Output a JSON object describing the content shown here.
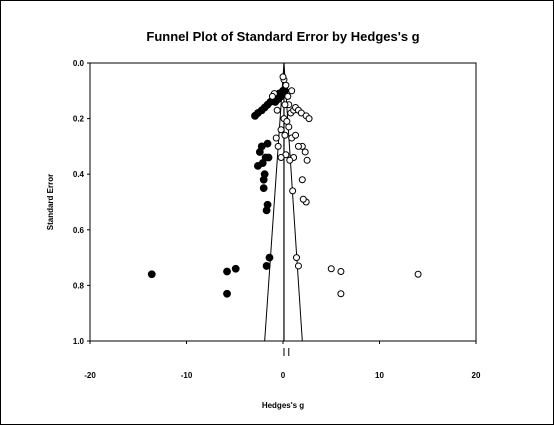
{
  "chart_data": {
    "type": "scatter",
    "title": "Funnel Plot of Standard Error by Hedges's g",
    "xlabel": "Hedges's g",
    "ylabel": "Standard Error",
    "xlim": [
      -20,
      20
    ],
    "ylim": [
      0.0,
      1.0
    ],
    "y_inverted": true,
    "x_ticks": [
      "-20",
      "-10",
      "0",
      "10",
      "20"
    ],
    "y_ticks": [
      "0.0",
      "0.2",
      "0.4",
      "0.6",
      "0.8",
      "1.0"
    ],
    "grid": false,
    "legend": "none",
    "funnel": {
      "center": 0.1,
      "apex_se": 0.0,
      "left_at_base": -1.9,
      "right_at_base": 2.0
    },
    "summary_markers": [
      0.1,
      0.6
    ],
    "series": [
      {
        "marker": "filled-circle",
        "points": [
          [
            -13.6,
            0.76
          ],
          [
            -5.8,
            0.75
          ],
          [
            -5.8,
            0.83
          ],
          [
            -4.9,
            0.74
          ],
          [
            -1.7,
            0.73
          ],
          [
            -1.4,
            0.7
          ],
          [
            -2.6,
            0.37
          ],
          [
            -2.4,
            0.32
          ],
          [
            -2.2,
            0.3
          ],
          [
            -2.1,
            0.36
          ],
          [
            -2.0,
            0.42
          ],
          [
            -2.0,
            0.45
          ],
          [
            -1.9,
            0.4
          ],
          [
            -1.8,
            0.34
          ],
          [
            -1.6,
            0.29
          ],
          [
            -1.5,
            0.34
          ],
          [
            -1.7,
            0.53
          ],
          [
            -1.6,
            0.51
          ],
          [
            -2.9,
            0.19
          ],
          [
            -2.6,
            0.18
          ],
          [
            -2.2,
            0.17
          ],
          [
            -1.9,
            0.16
          ],
          [
            -1.6,
            0.15
          ],
          [
            -1.3,
            0.14
          ],
          [
            -1.0,
            0.13
          ],
          [
            -0.7,
            0.12
          ],
          [
            -0.4,
            0.11
          ],
          [
            -0.1,
            0.11
          ],
          [
            0.2,
            0.1
          ],
          [
            -0.8,
            0.14
          ],
          [
            -0.5,
            0.13
          ],
          [
            -0.2,
            0.12
          ],
          [
            0.0,
            0.1
          ]
        ]
      },
      {
        "marker": "open-circle",
        "points": [
          [
            14.0,
            0.76
          ],
          [
            6.0,
            0.75
          ],
          [
            6.0,
            0.83
          ],
          [
            5.0,
            0.74
          ],
          [
            1.6,
            0.73
          ],
          [
            1.4,
            0.7
          ],
          [
            2.4,
            0.5
          ],
          [
            2.1,
            0.49
          ],
          [
            1.0,
            0.46
          ],
          [
            2.0,
            0.42
          ],
          [
            2.5,
            0.35
          ],
          [
            2.3,
            0.32
          ],
          [
            2.0,
            0.3
          ],
          [
            1.6,
            0.3
          ],
          [
            1.1,
            0.34
          ],
          [
            0.7,
            0.35
          ],
          [
            0.3,
            0.33
          ],
          [
            -0.2,
            0.34
          ],
          [
            -0.5,
            0.3
          ],
          [
            -0.7,
            0.27
          ],
          [
            0.9,
            0.27
          ],
          [
            1.3,
            0.26
          ],
          [
            0.2,
            0.26
          ],
          [
            -0.2,
            0.24
          ],
          [
            0.6,
            0.23
          ],
          [
            0.1,
            0.2
          ],
          [
            0.4,
            0.21
          ],
          [
            0.8,
            0.18
          ],
          [
            1.1,
            0.17
          ],
          [
            1.3,
            0.16
          ],
          [
            1.6,
            0.17
          ],
          [
            1.9,
            0.18
          ],
          [
            2.4,
            0.19
          ],
          [
            2.7,
            0.2
          ],
          [
            0.6,
            0.15
          ],
          [
            0.2,
            0.15
          ],
          [
            -0.6,
            0.17
          ],
          [
            -0.9,
            0.11
          ],
          [
            -1.1,
            0.12
          ],
          [
            0.5,
            0.12
          ],
          [
            0.9,
            0.1
          ],
          [
            0.3,
            0.08
          ],
          [
            0.1,
            0.06
          ],
          [
            0.0,
            0.05
          ]
        ]
      }
    ]
  }
}
